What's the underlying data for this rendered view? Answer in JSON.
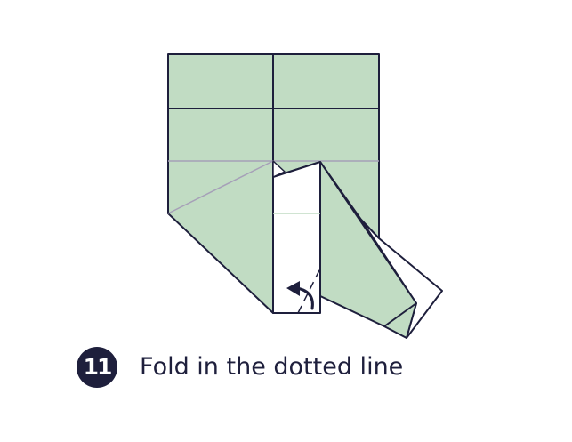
{
  "step": {
    "number": "11",
    "caption": "Fold in the dotted line"
  },
  "colors": {
    "paper_front": "#c1dcc3",
    "paper_back": "#ffffff",
    "outline": "#1e1f3c",
    "crease": "#a6a0b8",
    "badge_background": "#1e1f3c",
    "badge_text": "#ffffff",
    "caption_text": "#1e1f3c"
  },
  "icons": {
    "fold_arrow": "curved-arrow-icon",
    "fold_line": "dotted-line"
  }
}
